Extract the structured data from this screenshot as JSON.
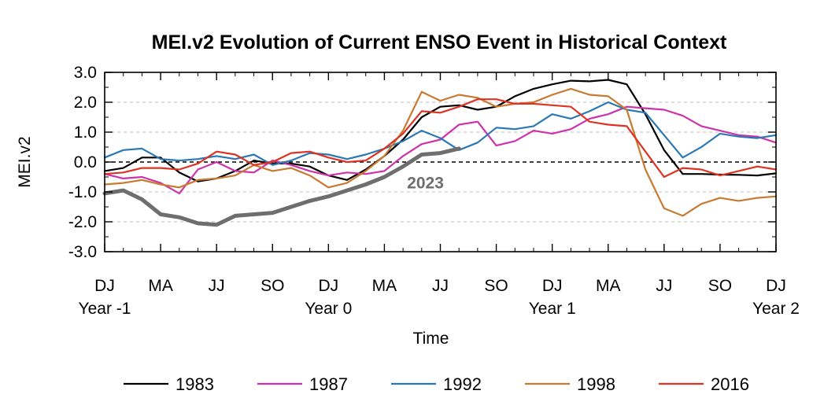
{
  "chart_data": {
    "type": "line",
    "title": "MEI.v2 Evolution of Current ENSO Event in Historical Context",
    "xlabel": "Time",
    "ylabel": "MEI.v2",
    "ylim": [
      -3.0,
      3.0
    ],
    "yticks": [
      "3.0",
      "2.0",
      "1.0",
      "0.0",
      "-1.0",
      "-2.0",
      "-3.0"
    ],
    "ytick_values": [
      3,
      2,
      1,
      0,
      -1,
      -2,
      -3
    ],
    "xlim": [
      0,
      36
    ],
    "xticks": [
      {
        "x": 0,
        "label": "DJ",
        "sub": "Year -1"
      },
      {
        "x": 3,
        "label": "MA",
        "sub": ""
      },
      {
        "x": 6,
        "label": "JJ",
        "sub": ""
      },
      {
        "x": 9,
        "label": "SO",
        "sub": ""
      },
      {
        "x": 12,
        "label": "DJ",
        "sub": "Year 0"
      },
      {
        "x": 15,
        "label": "MA",
        "sub": ""
      },
      {
        "x": 18,
        "label": "JJ",
        "sub": ""
      },
      {
        "x": 21,
        "label": "SO",
        "sub": ""
      },
      {
        "x": 24,
        "label": "DJ",
        "sub": "Year 1"
      },
      {
        "x": 27,
        "label": "MA",
        "sub": ""
      },
      {
        "x": 30,
        "label": "JJ",
        "sub": ""
      },
      {
        "x": 33,
        "label": "SO",
        "sub": ""
      },
      {
        "x": 36,
        "label": "DJ",
        "sub": "Year 2"
      }
    ],
    "grid": "horizontal dashed",
    "legend_position": "bottom",
    "annotation": {
      "text": "2023",
      "x": 17.2,
      "y": -0.7,
      "color": "#6e6e6e"
    },
    "series": [
      {
        "name": "1983",
        "color": "#000000",
        "width": 2.2,
        "values": [
          -0.3,
          -0.2,
          0.15,
          0.15,
          -0.35,
          -0.65,
          -0.55,
          -0.3,
          0.05,
          -0.05,
          -0.05,
          -0.15,
          -0.45,
          -0.6,
          -0.25,
          0.2,
          0.75,
          1.5,
          1.85,
          1.9,
          1.75,
          1.85,
          2.2,
          2.45,
          2.6,
          2.72,
          2.7,
          2.75,
          2.6,
          1.6,
          0.4,
          -0.4,
          -0.4,
          -0.42,
          -0.43,
          -0.45,
          -0.38
        ]
      },
      {
        "name": "1987",
        "color": "#cc33aa",
        "width": 2.2,
        "values": [
          -0.4,
          -0.55,
          -0.5,
          -0.7,
          -1.05,
          -0.25,
          0.0,
          -0.3,
          -0.35,
          0.05,
          -0.1,
          -0.3,
          -0.45,
          -0.35,
          -0.4,
          -0.3,
          0.2,
          0.6,
          0.75,
          1.25,
          1.35,
          0.55,
          0.7,
          1.05,
          0.95,
          1.1,
          1.45,
          1.6,
          1.85,
          1.8,
          1.75,
          1.55,
          1.2,
          1.05,
          0.9,
          0.85,
          0.65
        ]
      },
      {
        "name": "1992",
        "color": "#2b78b5",
        "width": 2.2,
        "values": [
          0.15,
          0.4,
          0.45,
          0.1,
          0.05,
          0.1,
          0.2,
          0.1,
          0.25,
          -0.1,
          0.05,
          0.3,
          0.25,
          0.1,
          0.25,
          0.45,
          0.7,
          1.05,
          0.8,
          0.4,
          0.65,
          1.15,
          1.1,
          1.2,
          1.6,
          1.45,
          1.7,
          2.0,
          1.75,
          1.65,
          0.9,
          0.15,
          0.5,
          0.95,
          0.85,
          0.8,
          0.9
        ]
      },
      {
        "name": "1998",
        "color": "#c87a30",
        "width": 2.2,
        "values": [
          -0.75,
          -0.7,
          -0.6,
          -0.75,
          -0.85,
          -0.6,
          -0.55,
          -0.45,
          -0.1,
          -0.3,
          -0.2,
          -0.45,
          -0.85,
          -0.7,
          -0.3,
          0.2,
          1.05,
          2.35,
          2.05,
          2.25,
          2.15,
          1.85,
          1.95,
          2.0,
          2.25,
          2.45,
          2.25,
          2.2,
          1.75,
          -0.25,
          -1.55,
          -1.8,
          -1.4,
          -1.2,
          -1.3,
          -1.2,
          -1.15
        ]
      },
      {
        "name": "2016",
        "color": "#dd3322",
        "width": 2.2,
        "values": [
          -0.4,
          -0.35,
          -0.2,
          -0.2,
          -0.25,
          -0.05,
          0.35,
          0.25,
          -0.1,
          0.0,
          0.3,
          0.35,
          0.15,
          0.0,
          0.05,
          0.45,
          0.95,
          1.7,
          1.65,
          1.85,
          2.1,
          2.1,
          1.95,
          1.95,
          1.9,
          1.85,
          1.35,
          1.25,
          1.2,
          0.35,
          -0.5,
          -0.2,
          -0.25,
          -0.45,
          -0.3,
          -0.15,
          -0.25
        ]
      },
      {
        "name": "2023",
        "color": "#6e6e6e",
        "width": 5,
        "values": [
          -1.05,
          -0.95,
          -1.25,
          -1.75,
          -1.85,
          -2.05,
          -2.1,
          -1.8,
          -1.75,
          -1.7,
          -1.5,
          -1.3,
          -1.15,
          -0.95,
          -0.75,
          -0.5,
          -0.15,
          0.25,
          0.3,
          0.45
        ]
      }
    ]
  }
}
